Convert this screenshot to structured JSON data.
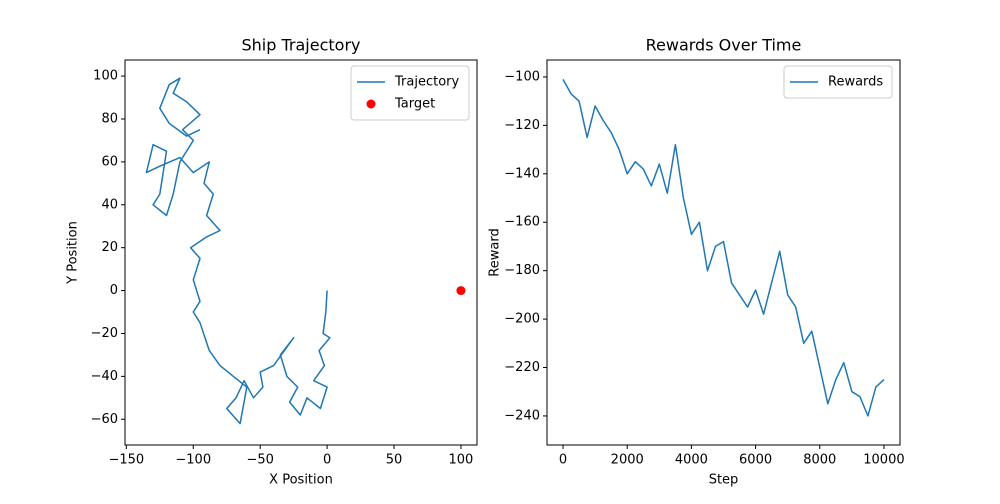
{
  "chart_data": [
    {
      "type": "line",
      "title": "Ship Trajectory",
      "xlabel": "X Position",
      "ylabel": "Y Position",
      "legend": "upper right",
      "xlim": [
        -151,
        112
      ],
      "ylim": [
        -72,
        107.5
      ],
      "xticks": [
        {
          "value": -150,
          "label": "−150"
        },
        {
          "value": -100,
          "label": "−100"
        },
        {
          "value": -50,
          "label": "−50"
        },
        0,
        50,
        100
      ],
      "yticks": [
        {
          "value": -60,
          "label": "−60"
        },
        {
          "value": -40,
          "label": "−40"
        },
        {
          "value": -20,
          "label": "−20"
        },
        0,
        20,
        40,
        60,
        80,
        100
      ],
      "series": [
        {
          "name": "Trajectory",
          "type": "line",
          "color": "#1f77b4",
          "x": [
            0,
            -1,
            -3,
            2,
            -6,
            -2,
            -10,
            0,
            -5,
            -15,
            -20,
            -28,
            -22,
            -30,
            -35,
            -25,
            -40,
            -50,
            -48,
            -55,
            -62,
            -68,
            -75,
            -65,
            -60,
            -70,
            -80,
            -88,
            -95,
            -100,
            -95,
            -100,
            -95,
            -102,
            -90,
            -80,
            -90,
            -85,
            -92,
            -88,
            -100,
            -110,
            -125,
            -135,
            -130,
            -120,
            -125,
            -130,
            -120,
            -115,
            -110,
            -100,
            -108,
            -95,
            -105,
            -115,
            -110,
            -118,
            -125,
            -118,
            -105,
            -95
          ],
          "y": [
            0,
            -10,
            -20,
            -22,
            -28,
            -35,
            -42,
            -45,
            -55,
            -50,
            -58,
            -52,
            -45,
            -40,
            -30,
            -22,
            -35,
            -38,
            -45,
            -50,
            -42,
            -50,
            -55,
            -62,
            -45,
            -40,
            -35,
            -28,
            -15,
            -10,
            -5,
            5,
            15,
            20,
            25,
            28,
            35,
            45,
            50,
            60,
            55,
            62,
            58,
            55,
            68,
            65,
            45,
            40,
            35,
            45,
            60,
            70,
            75,
            82,
            88,
            92,
            99,
            96,
            85,
            78,
            72,
            75
          ]
        },
        {
          "name": "Target",
          "type": "scatter",
          "color": "#ff0000",
          "x": [
            100
          ],
          "y": [
            0
          ]
        }
      ]
    },
    {
      "type": "line",
      "title": "Rewards Over Time",
      "xlabel": "Step",
      "ylabel": "Reward",
      "legend": "upper right",
      "xlim": [
        -500,
        10500
      ],
      "ylim": [
        -252,
        -93
      ],
      "xticks": [
        0,
        2000,
        4000,
        6000,
        8000,
        10000
      ],
      "yticks": [
        {
          "value": -240,
          "label": "−240"
        },
        {
          "value": -220,
          "label": "−220"
        },
        {
          "value": -200,
          "label": "−200"
        },
        {
          "value": -180,
          "label": "−180"
        },
        {
          "value": -160,
          "label": "−160"
        },
        {
          "value": -140,
          "label": "−140"
        },
        {
          "value": -120,
          "label": "−120"
        },
        {
          "value": -100,
          "label": "−100"
        }
      ],
      "series": [
        {
          "name": "Rewards",
          "type": "line",
          "color": "#1f77b4",
          "x": [
            0,
            250,
            500,
            750,
            1000,
            1250,
            1500,
            1750,
            2000,
            2250,
            2500,
            2750,
            3000,
            3250,
            3500,
            3750,
            4000,
            4250,
            4500,
            4750,
            5000,
            5250,
            5500,
            5750,
            6000,
            6250,
            6500,
            6750,
            7000,
            7250,
            7500,
            7750,
            8000,
            8250,
            8500,
            8750,
            9000,
            9250,
            9500,
            9750,
            10000
          ],
          "y": [
            -101,
            -107,
            -110,
            -125,
            -112,
            -118,
            -123,
            -130,
            -140,
            -135,
            -138,
            -145,
            -136,
            -148,
            -128,
            -150,
            -165,
            -160,
            -180,
            -170,
            -168,
            -185,
            -190,
            -195,
            -188,
            -198,
            -185,
            -172,
            -190,
            -195,
            -210,
            -205,
            -220,
            -235,
            -225,
            -218,
            -230,
            -232,
            -240,
            -228,
            -225
          ]
        }
      ]
    }
  ]
}
